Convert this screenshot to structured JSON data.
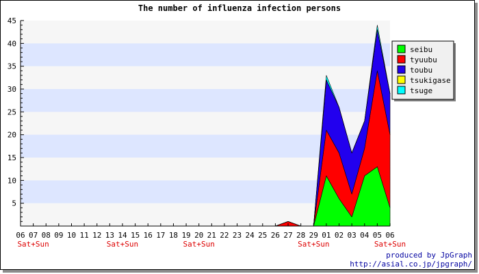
{
  "chart_data": {
    "type": "area",
    "stacked": true,
    "title": "The number of influenza infection persons",
    "xlabel": "",
    "ylabel": "",
    "ylim": [
      0,
      45
    ],
    "yticks": [
      5,
      10,
      15,
      20,
      25,
      30,
      35,
      40,
      45
    ],
    "categories": [
      "06",
      "07",
      "08",
      "09",
      "10",
      "11",
      "12",
      "13",
      "14",
      "15",
      "16",
      "17",
      "18",
      "19",
      "20",
      "21",
      "22",
      "23",
      "24",
      "25",
      "26",
      "27",
      "28",
      "29",
      "01",
      "02",
      "03",
      "04",
      "05",
      "06"
    ],
    "weekend_label": "Sat+Sun",
    "weekend_indices": [
      1,
      8,
      14,
      23,
      29
    ],
    "grid": "horizontal bands",
    "legend_position": "right",
    "series": [
      {
        "name": "seibu",
        "color": "#00ff00",
        "values": [
          0,
          0,
          0,
          0,
          0,
          0,
          0,
          0,
          0,
          0,
          0,
          0,
          0,
          0,
          0,
          0,
          0,
          0,
          0,
          0,
          0,
          0,
          0,
          0,
          11,
          6,
          2,
          11,
          13,
          4
        ]
      },
      {
        "name": "tyuubu",
        "color": "#ff0000",
        "values": [
          0,
          0,
          0,
          0,
          0,
          0,
          0,
          0,
          0,
          0,
          0,
          0,
          0,
          0,
          0,
          0,
          0,
          0,
          0,
          0,
          0,
          1,
          0,
          0,
          10,
          10,
          5,
          6,
          21,
          16
        ]
      },
      {
        "name": "toubu",
        "color": "#2200ee",
        "values": [
          0,
          0,
          0,
          0,
          0,
          0,
          0,
          0,
          0,
          0,
          0,
          0,
          0,
          0,
          0,
          0,
          0,
          0,
          0,
          0,
          0,
          0,
          0,
          0,
          11,
          10,
          9,
          6,
          9,
          9
        ]
      },
      {
        "name": "tsukigase",
        "color": "#ffff00",
        "values": [
          0,
          0,
          0,
          0,
          0,
          0,
          0,
          0,
          0,
          0,
          0,
          0,
          0,
          0,
          0,
          0,
          0,
          0,
          0,
          0,
          0,
          0,
          0,
          0,
          0,
          0,
          0,
          0,
          0,
          0
        ]
      },
      {
        "name": "tsuge",
        "color": "#00ffff",
        "values": [
          0,
          0,
          0,
          0,
          0,
          0,
          0,
          0,
          0,
          0,
          0,
          0,
          0,
          0,
          0,
          0,
          0,
          0,
          0,
          0,
          0,
          0,
          0,
          0,
          1,
          0,
          0,
          0,
          1,
          0
        ]
      }
    ]
  },
  "credits": {
    "line1": "produced by JpGraph",
    "line2": "http://asial.co.jp/jpgraph/"
  }
}
